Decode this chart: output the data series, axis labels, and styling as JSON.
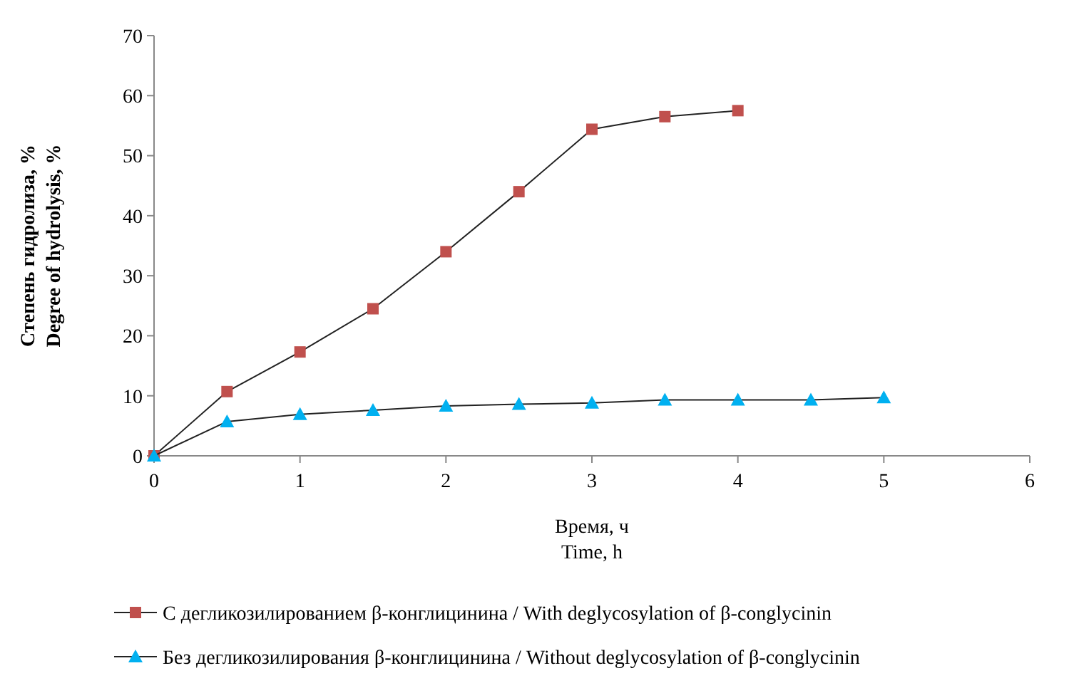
{
  "chart_data": {
    "type": "line",
    "xlabel": "Время, ч\nTime, h",
    "ylabel": "Степень гидролиза, %\nDegree of hydrolysis, %",
    "xlim": [
      0,
      6
    ],
    "xticks": [
      0,
      1,
      2,
      3,
      4,
      5,
      6
    ],
    "ylim": [
      0,
      70
    ],
    "yticks": [
      0,
      10,
      20,
      30,
      40,
      50,
      60,
      70
    ],
    "grid": false,
    "legend": "bottom",
    "series": [
      {
        "name": "С дегликозилированием β-конглицинина / With deglycosylation of β-conglycinin",
        "color": "#c0504d",
        "marker": "square",
        "x": [
          0,
          0.5,
          1,
          1.5,
          2,
          2.5,
          3,
          3.5,
          4
        ],
        "values": [
          0,
          10.7,
          17.3,
          24.5,
          34,
          44,
          54.4,
          56.5,
          57.5
        ]
      },
      {
        "name": "Без дегликозилирования β-конглицинина / Without deglycosylation of β-conglycinin",
        "color": "#00b0f0",
        "marker": "triangle",
        "x": [
          0,
          0.5,
          1,
          1.5,
          2,
          2.5,
          3,
          3.5,
          4,
          4.5,
          5
        ],
        "values": [
          0,
          5.7,
          6.9,
          7.6,
          8.3,
          8.6,
          8.8,
          9.3,
          9.3,
          9.3,
          9.7
        ]
      }
    ]
  }
}
